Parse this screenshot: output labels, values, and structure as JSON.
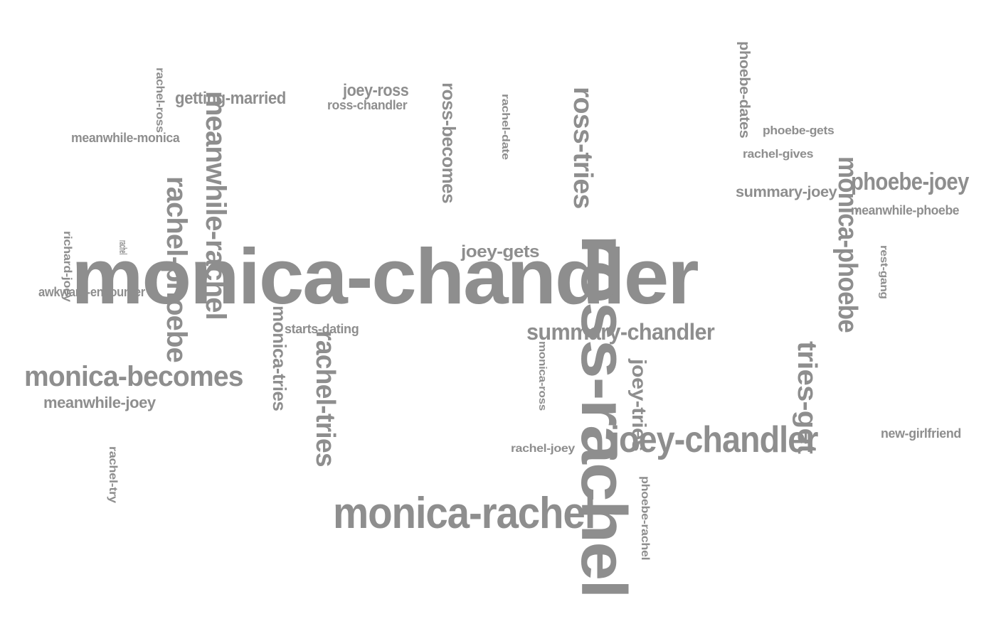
{
  "colors": {
    "word": "#8e8e8e",
    "background": "#ffffff"
  },
  "words": [
    "monica-chandler",
    "ross-rachel",
    "monica-rachel",
    "joey-chandler",
    "monica-becomes",
    "summary-chandler",
    "ross-tries",
    "meanwhile-rachel",
    "rachel-phoebe",
    "rachel-tries",
    "tries-get",
    "monica-phoebe",
    "phoebe-joey",
    "getting-married",
    "joey-ross",
    "ross-becomes",
    "monica-tries",
    "joey-tries",
    "meanwhile-joey",
    "summary-joey",
    "joey-gets",
    "ross-chandler",
    "meanwhile-monica",
    "phoebe-dates",
    "phoebe-gets",
    "rachel-gives",
    "meanwhile-phoebe",
    "starts-dating",
    "rachel-joey",
    "new-girlfriend",
    "awkward-encounter",
    "richard-joey",
    "rachel-ross",
    "rachel-date",
    "rest-gang",
    "monica-ross",
    "phoebe-rachel",
    "rachel-try",
    "rachel"
  ]
}
